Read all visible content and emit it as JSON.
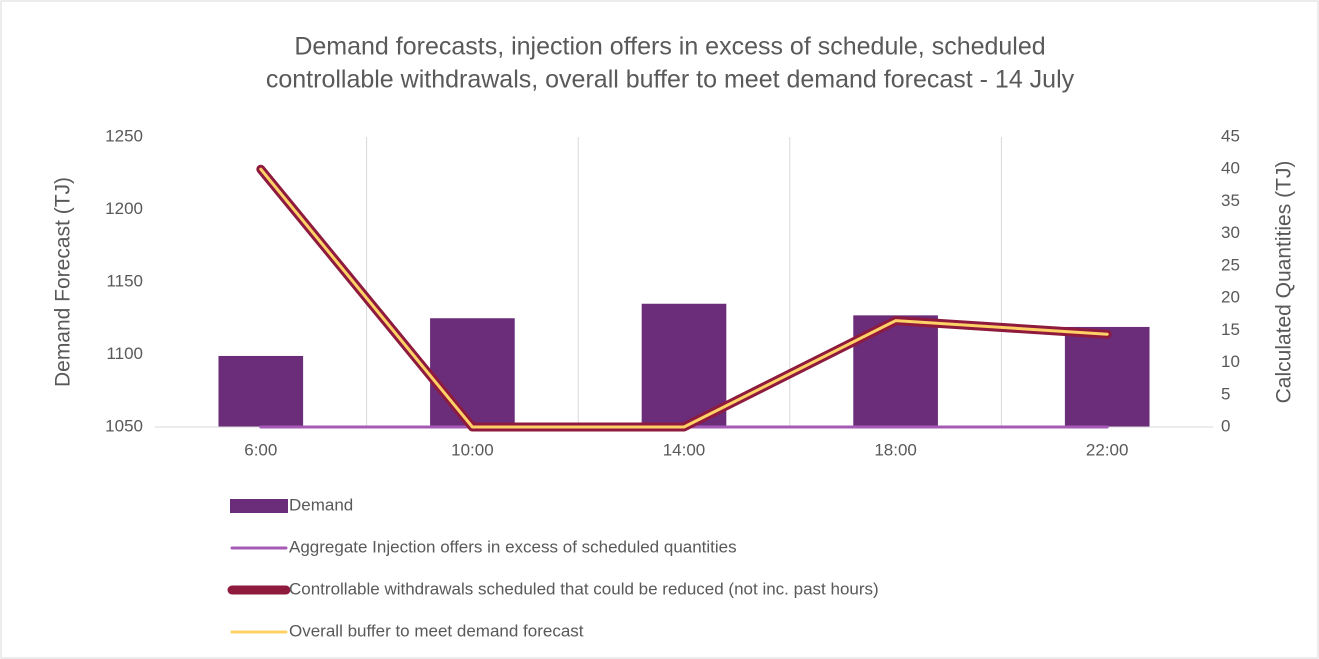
{
  "chart_data": {
    "type": "bar_line",
    "title": [
      "Demand forecasts, injection offers in excess of schedule, scheduled",
      "controllable withdrawals, overall buffer to meet demand forecast - 14 July"
    ],
    "y_label": "Demand Forecast (TJ)",
    "y2_label": "Calculated Quantities (TJ)",
    "categories": [
      "6:00",
      "10:00",
      "14:00",
      "18:00",
      "22:00"
    ],
    "ylim": [
      1050,
      1250
    ],
    "yticks": [
      1050,
      1100,
      1150,
      1200,
      1250
    ],
    "y2lim": [
      0,
      45
    ],
    "y2ticks": [
      0,
      5,
      10,
      15,
      20,
      25,
      30,
      35,
      40,
      45
    ],
    "grid": "vertical",
    "legend": "bottom",
    "series": [
      {
        "name": "Demand",
        "type": "bar",
        "color": "#6b2c7a",
        "values": [
          1099,
          1125,
          1135,
          1127,
          1119
        ]
      },
      {
        "name": "Aggregate Injection offers in excess of scheduled quantities",
        "type": "line",
        "axis": "y2",
        "color": "#a55bb5",
        "width": 3,
        "values": [
          0,
          0,
          0,
          0,
          0
        ]
      },
      {
        "name": "Controllable withdrawals scheduled that could be reduced (not inc. past hours)",
        "type": "line",
        "axis": "y2",
        "color": "#8e1b3d",
        "width": 9,
        "values": [
          40,
          0,
          0,
          16.5,
          14.4
        ]
      },
      {
        "name": "Overall buffer to meet demand forecast",
        "type": "line",
        "axis": "y2",
        "color": "#ffd166",
        "width": 3,
        "values": [
          40,
          0,
          0,
          16.5,
          14.4
        ]
      }
    ]
  }
}
